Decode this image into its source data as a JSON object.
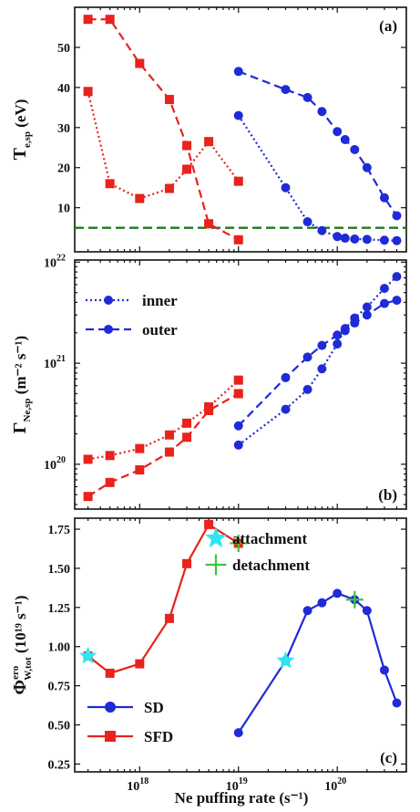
{
  "xlabel": "Ne puffing rate (s⁻¹)",
  "colors": {
    "sfd": "#e8221c",
    "sd": "#1f2bd6",
    "ref_line": "#1f7a1f",
    "attachment": "#2ee6ef",
    "detachment": "#3ec43e"
  },
  "chart_data": [
    {
      "type": "line",
      "panel_label": "(a)",
      "ylabel_main": "T",
      "ylabel_sub": "e,sp",
      "ylabel_unit": " (eV)",
      "xscale": "log",
      "xlim": [
        2.2e+17,
        5e+20
      ],
      "ylim": [
        -1,
        60
      ],
      "yticks": [
        "10",
        "20",
        "30",
        "40",
        "50"
      ],
      "yticks_val": [
        10,
        20,
        30,
        40,
        50
      ],
      "xticks_val": [
        1e+18,
        1e+19,
        1e+20
      ],
      "ref_line_y": 5,
      "series": [
        {
          "style": "dashed",
          "color": "sfd",
          "marker": "square",
          "x": [
            3e+17,
            5e+17,
            1e+18,
            2e+18,
            3e+18,
            5e+18,
            1e+19
          ],
          "y": [
            57,
            57,
            46,
            37,
            25.5,
            6,
            2
          ]
        },
        {
          "style": "dotted",
          "color": "sfd",
          "marker": "square",
          "x": [
            3e+17,
            5e+17,
            1e+18,
            2e+18,
            3e+18,
            5e+18,
            1e+19
          ],
          "y": [
            39,
            16,
            12.3,
            14.8,
            19.6,
            26.5,
            16.6
          ]
        },
        {
          "style": "dashed",
          "color": "sd",
          "marker": "circle",
          "x": [
            1e+19,
            3e+19,
            5e+19,
            7e+19,
            1e+20,
            1.2e+20,
            1.5e+20,
            2e+20,
            3e+20,
            4e+20
          ],
          "y": [
            44,
            39.5,
            37.5,
            34,
            29,
            27,
            24.5,
            20,
            12.5,
            8
          ]
        },
        {
          "style": "dotted",
          "color": "sd",
          "marker": "circle",
          "x": [
            1e+19,
            3e+19,
            5e+19,
            7e+19,
            1e+20,
            1.2e+20,
            1.5e+20,
            2e+20,
            3e+20,
            4e+20
          ],
          "y": [
            33,
            15,
            6.5,
            4.3,
            2.8,
            2.4,
            2.2,
            2.1,
            1.9,
            1.8
          ]
        }
      ]
    },
    {
      "type": "line",
      "panel_label": "(b)",
      "ylabel_main": "Γ",
      "ylabel_sub": "Ne,sp",
      "ylabel_unit": " (m⁻² s⁻¹)",
      "xscale": "log",
      "yscale": "log",
      "xlim": [
        2.2e+17,
        5e+20
      ],
      "ylim": [
        3.6e+19,
        1.05e+22
      ],
      "ytick_base": "10",
      "yticks_exp": [
        "20",
        "21",
        "22"
      ],
      "yticks_val": [
        1e+20,
        1e+21,
        1e+22
      ],
      "xticks_val": [
        1e+18,
        1e+19,
        1e+20
      ],
      "legend": [
        {
          "label": "inner",
          "style": "dotted"
        },
        {
          "label": "outer",
          "style": "dashed"
        }
      ],
      "series": [
        {
          "style": "dotted",
          "color": "sfd",
          "marker": "square",
          "x": [
            3e+17,
            5e+17,
            1e+18,
            2e+18,
            3e+18,
            5e+18,
            1e+19
          ],
          "y": [
            1.12e+20,
            1.22e+20,
            1.43e+20,
            1.95e+20,
            2.55e+20,
            3.7e+20,
            6.8e+20
          ]
        },
        {
          "style": "dashed",
          "color": "sfd",
          "marker": "square",
          "x": [
            3e+17,
            5e+17,
            1e+18,
            2e+18,
            3e+18,
            5e+18,
            1e+19
          ],
          "y": [
            4.8e+19,
            6.6e+19,
            8.8e+19,
            1.32e+20,
            1.85e+20,
            3.4e+20,
            5e+20
          ]
        },
        {
          "style": "dotted",
          "color": "sd",
          "marker": "circle",
          "x": [
            1e+19,
            3e+19,
            5e+19,
            7e+19,
            1e+20,
            1.2e+20,
            1.5e+20,
            2e+20,
            3e+20,
            4e+20
          ],
          "y": [
            1.55e+20,
            3.5e+20,
            5.5e+20,
            8.8e+20,
            1.55e+21,
            2.2e+21,
            2.8e+21,
            3.6e+21,
            5.5e+21,
            7.2e+21
          ]
        },
        {
          "style": "dashed",
          "color": "sd",
          "marker": "circle",
          "x": [
            1e+19,
            3e+19,
            5e+19,
            7e+19,
            1e+20,
            1.2e+20,
            1.5e+20,
            2e+20,
            3e+20,
            4e+20
          ],
          "y": [
            2.4e+20,
            7.2e+20,
            1.15e+21,
            1.5e+21,
            1.9e+21,
            2.1e+21,
            2.5e+21,
            3e+21,
            3.9e+21,
            4.2e+21
          ]
        }
      ]
    },
    {
      "type": "line",
      "panel_label": "(c)",
      "ylabel_main": "Φ",
      "ylabel_sup": "ero",
      "ylabel_sub": "W,tot",
      "ylabel_unit": " (10¹⁹ s⁻¹)",
      "xscale": "log",
      "xlim": [
        2.2e+17,
        5e+20
      ],
      "ylim": [
        0.2,
        1.82
      ],
      "yticks": [
        "0.25",
        "0.50",
        "0.75",
        "1.00",
        "1.25",
        "1.50",
        "1.75"
      ],
      "yticks_val": [
        0.25,
        0.5,
        0.75,
        1.0,
        1.25,
        1.5,
        1.75
      ],
      "xtick_base": "10",
      "xticks_exp": [
        "18",
        "19",
        "20"
      ],
      "xticks_val": [
        1e+18,
        1e+19,
        1e+20
      ],
      "legend": [
        {
          "label": "SD",
          "color": "sd",
          "marker": "circle"
        },
        {
          "label": "SFD",
          "color": "sfd",
          "marker": "square"
        }
      ],
      "marker_legend": [
        {
          "label": "attachment",
          "color": "attachment",
          "marker": "star"
        },
        {
          "label": "detachment",
          "color": "detachment",
          "marker": "plus"
        }
      ],
      "series": [
        {
          "name": "SD",
          "style": "solid",
          "color": "sd",
          "marker": "circle",
          "x": [
            1e+19,
            3e+19,
            5e+19,
            7e+19,
            1e+20,
            1.5e+20,
            2e+20,
            3e+20,
            4e+20
          ],
          "y": [
            0.45,
            0.91,
            1.23,
            1.28,
            1.34,
            1.3,
            1.23,
            0.85,
            0.64
          ]
        },
        {
          "name": "SFD",
          "style": "solid",
          "color": "sfd",
          "marker": "square",
          "x": [
            3e+17,
            5e+17,
            1e+18,
            2e+18,
            3e+18,
            5e+18,
            1e+19
          ],
          "y": [
            0.94,
            0.83,
            0.89,
            1.18,
            1.53,
            1.78,
            1.66
          ]
        }
      ],
      "attachment_points": {
        "x": [
          3e+17,
          3e+19
        ],
        "y": [
          0.94,
          0.91
        ]
      },
      "detachment_points": {
        "x": [
          1e+19,
          1.5e+20
        ],
        "y": [
          1.66,
          1.3
        ]
      }
    }
  ]
}
